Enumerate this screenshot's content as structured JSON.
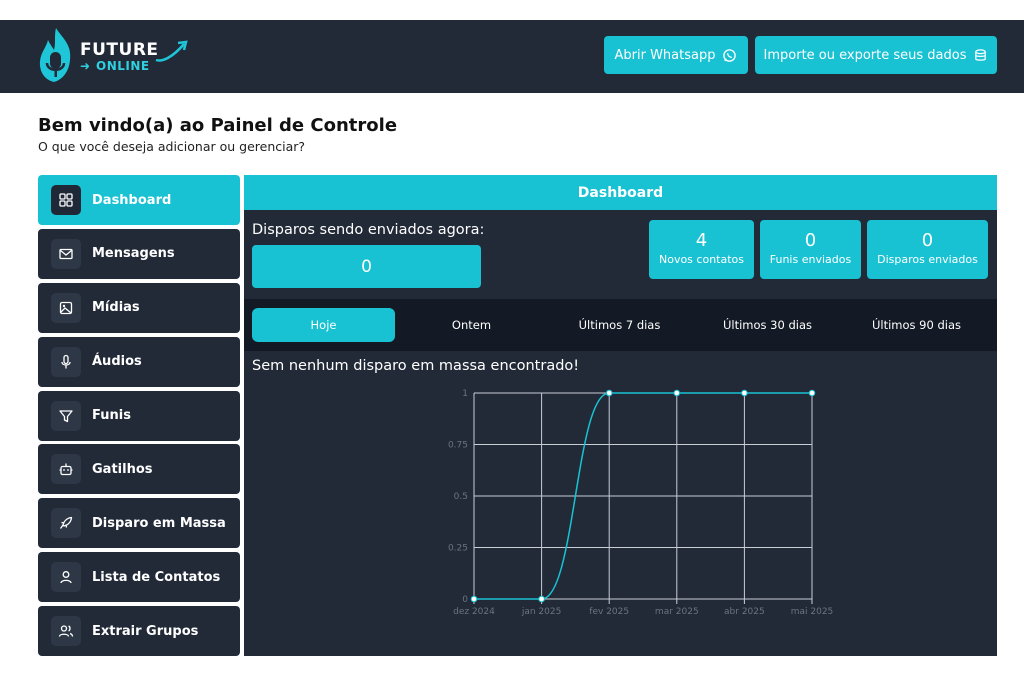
{
  "header": {
    "logo_line1": "FUTURE",
    "logo_line2": "ONLINE",
    "btn_whatsapp": "Abrir Whatsapp",
    "btn_whatsapp_icon": "whatsapp-icon",
    "btn_data": "Importe ou exporte seus dados",
    "btn_data_icon": "database-icon"
  },
  "welcome": {
    "title": "Bem vindo(a) ao Painel de Controle",
    "subtitle": "O que você deseja adicionar ou gerenciar?"
  },
  "sidebar": {
    "items": [
      {
        "label": "Dashboard",
        "icon": "dashboard-grid-icon",
        "active": true
      },
      {
        "label": "Mensagens",
        "icon": "mail-icon"
      },
      {
        "label": "Mídias",
        "icon": "image-icon"
      },
      {
        "label": "Áudios",
        "icon": "microphone-icon"
      },
      {
        "label": "Funis",
        "icon": "funnel-icon"
      },
      {
        "label": "Gatilhos",
        "icon": "robot-icon"
      },
      {
        "label": "Disparo em Massa",
        "icon": "rocket-icon"
      },
      {
        "label": "Lista de Contatos",
        "icon": "user-icon"
      },
      {
        "label": "Extrair Grupos",
        "icon": "users-icon"
      }
    ]
  },
  "panel": {
    "title": "Dashboard",
    "now_label": "Disparos sendo enviados agora:",
    "now_value": "0",
    "stats": [
      {
        "value": "4",
        "label": "Novos contatos"
      },
      {
        "value": "0",
        "label": "Funis enviados"
      },
      {
        "value": "0",
        "label": "Disparos enviados"
      }
    ],
    "tabs": [
      "Hoje",
      "Ontem",
      "Últimos 7 dias",
      "Últimos 30 dias",
      "Últimos 90 dias"
    ],
    "active_tab": "Hoje",
    "empty_message": "Sem nenhum disparo em massa encontrado!"
  },
  "colors": {
    "accent": "#19c2d3",
    "dark": "#222a38",
    "darker": "#131a25"
  },
  "chart_data": {
    "type": "line",
    "x": [
      "dez 2024",
      "jan 2025",
      "fev 2025",
      "mar 2025",
      "abr 2025",
      "mai 2025"
    ],
    "y_ticks": [
      "0",
      "0.25",
      "0.5",
      "0.75",
      "1"
    ],
    "ylim": [
      0,
      1
    ],
    "series": [
      {
        "values": [
          0,
          0,
          1,
          1,
          1,
          1
        ]
      }
    ],
    "grid": true
  }
}
